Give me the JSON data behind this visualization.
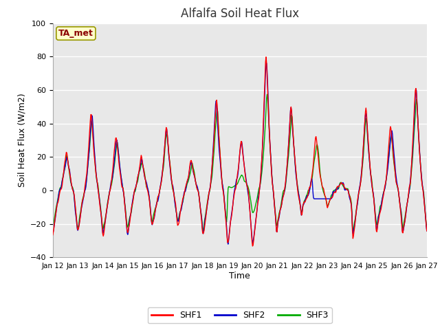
{
  "title": "Alfalfa Soil Heat Flux",
  "xlabel": "Time",
  "ylabel": "Soil Heat Flux (W/m2)",
  "ylim": [
    -40,
    100
  ],
  "xlim": [
    0,
    360
  ],
  "background_color": "#ffffff",
  "plot_bg_color": "#e8e8e8",
  "grid_color": "#ffffff",
  "ta_met_label": "TA_met",
  "ta_met_bg": "#ffffcc",
  "ta_met_border": "#999900",
  "ta_met_text_color": "#8b0000",
  "line_colors": {
    "SHF1": "#ff0000",
    "SHF2": "#0000cc",
    "SHF3": "#00aa00"
  },
  "line_width": 1.0,
  "xtick_labels": [
    "Jan 12",
    "Jan 13",
    "Jan 14",
    "Jan 15",
    "Jan 16",
    "Jan 17",
    "Jan 18",
    "Jan 19",
    "Jan 20",
    "Jan 21",
    "Jan 22",
    "Jan 23",
    "Jan 24",
    "Jan 25",
    "Jan 26",
    "Jan 27"
  ],
  "xtick_positions": [
    0,
    24,
    48,
    72,
    96,
    120,
    144,
    168,
    192,
    216,
    240,
    264,
    288,
    312,
    336,
    360
  ],
  "ytick_positions": [
    -40,
    -20,
    0,
    20,
    40,
    60,
    80,
    100
  ]
}
